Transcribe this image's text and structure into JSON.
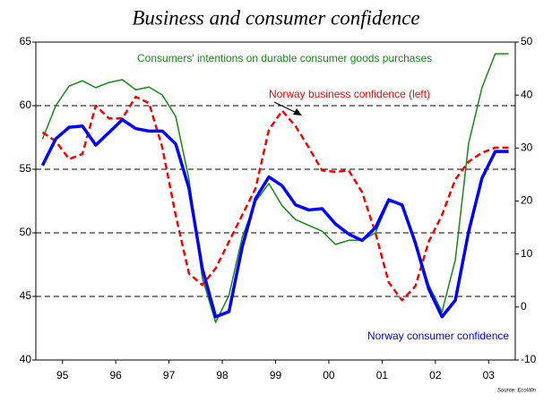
{
  "chart_data": {
    "type": "line",
    "title": "Business and consumer confidence",
    "source": "Source: EcoWin",
    "annotations": [
      "Consumers' intentions on durable consumer goods purchases",
      "Norway business confidence (left)",
      "Norway consumer confidence"
    ],
    "x": [
      1995.125,
      1995.375,
      1995.625,
      1995.875,
      1996.125,
      1996.375,
      1996.625,
      1996.875,
      1997.125,
      1997.375,
      1997.625,
      1997.875,
      1998.125,
      1998.375,
      1998.625,
      1998.875,
      1999.125,
      1999.375,
      1999.625,
      1999.875,
      2000.125,
      2000.375,
      2000.625,
      2000.875,
      2001.125,
      2001.375,
      2001.625,
      2001.875,
      2002.125,
      2002.375,
      2002.625,
      2002.875,
      2003.125,
      2003.375,
      2003.625,
      2003.875
    ],
    "xlim": [
      1995,
      2004
    ],
    "xticks": [
      {
        "value": 1995.5,
        "label": "95"
      },
      {
        "value": 1996.5,
        "label": "96"
      },
      {
        "value": 1997.5,
        "label": "97"
      },
      {
        "value": 1998.5,
        "label": "98"
      },
      {
        "value": 1999.5,
        "label": "99"
      },
      {
        "value": 2000.5,
        "label": "00"
      },
      {
        "value": 2001.5,
        "label": "01"
      },
      {
        "value": 2002.5,
        "label": "02"
      },
      {
        "value": 2003.5,
        "label": "03"
      }
    ],
    "ylim": [
      40,
      65
    ],
    "yticks": [
      40,
      45,
      50,
      55,
      60,
      65
    ],
    "y2lim": [
      -10,
      50
    ],
    "y2ticks": [
      -10,
      0,
      10,
      20,
      30,
      40,
      50
    ],
    "grid": true,
    "series": [
      {
        "name": "Consumers' intentions on durable consumer goods purchases",
        "color": "#138a13",
        "axis": "y2",
        "linestyle": "solid",
        "width": 1.5,
        "values": [
          31.7,
          38.0,
          41.7,
          42.7,
          41.4,
          42.4,
          42.9,
          41.0,
          41.5,
          40.0,
          36.0,
          24.1,
          5.5,
          -2.9,
          2.2,
          13.2,
          19.9,
          23.3,
          19.1,
          16.5,
          15.4,
          14.3,
          11.8,
          12.6,
          12.6,
          14.0,
          19.9,
          19.4,
          12.6,
          4.2,
          -0.9,
          8.9,
          30.9,
          41.4,
          47.8,
          47.8
        ]
      },
      {
        "name": "Norway business confidence (left)",
        "color": "#ff0000",
        "axis": "y",
        "linestyle": "dashed",
        "width": 2.5,
        "values": [
          57.9,
          57.2,
          55.8,
          56.2,
          60.0,
          59.0,
          59.0,
          60.7,
          60.2,
          56.7,
          51.4,
          46.8,
          45.9,
          47.2,
          49.3,
          51.4,
          53.5,
          58.1,
          59.6,
          58.4,
          56.7,
          54.9,
          54.8,
          54.9,
          53.2,
          50.0,
          46.1,
          44.7,
          45.8,
          49.3,
          51.4,
          54.2,
          55.6,
          56.3,
          56.7,
          56.7
        ]
      },
      {
        "name": "Norway consumer confidence",
        "color": "#0000ff",
        "axis": "y",
        "linestyle": "solid",
        "width": 3.5,
        "values": [
          55.3,
          57.4,
          58.3,
          58.4,
          56.9,
          57.9,
          58.9,
          58.2,
          58.0,
          58.0,
          57.0,
          53.5,
          47.2,
          43.4,
          43.8,
          48.9,
          52.7,
          54.4,
          53.7,
          52.2,
          51.8,
          51.9,
          50.7,
          49.9,
          49.4,
          50.4,
          52.6,
          52.2,
          49.2,
          45.6,
          43.4,
          44.7,
          50.1,
          54.3,
          56.4,
          56.4
        ]
      }
    ]
  }
}
